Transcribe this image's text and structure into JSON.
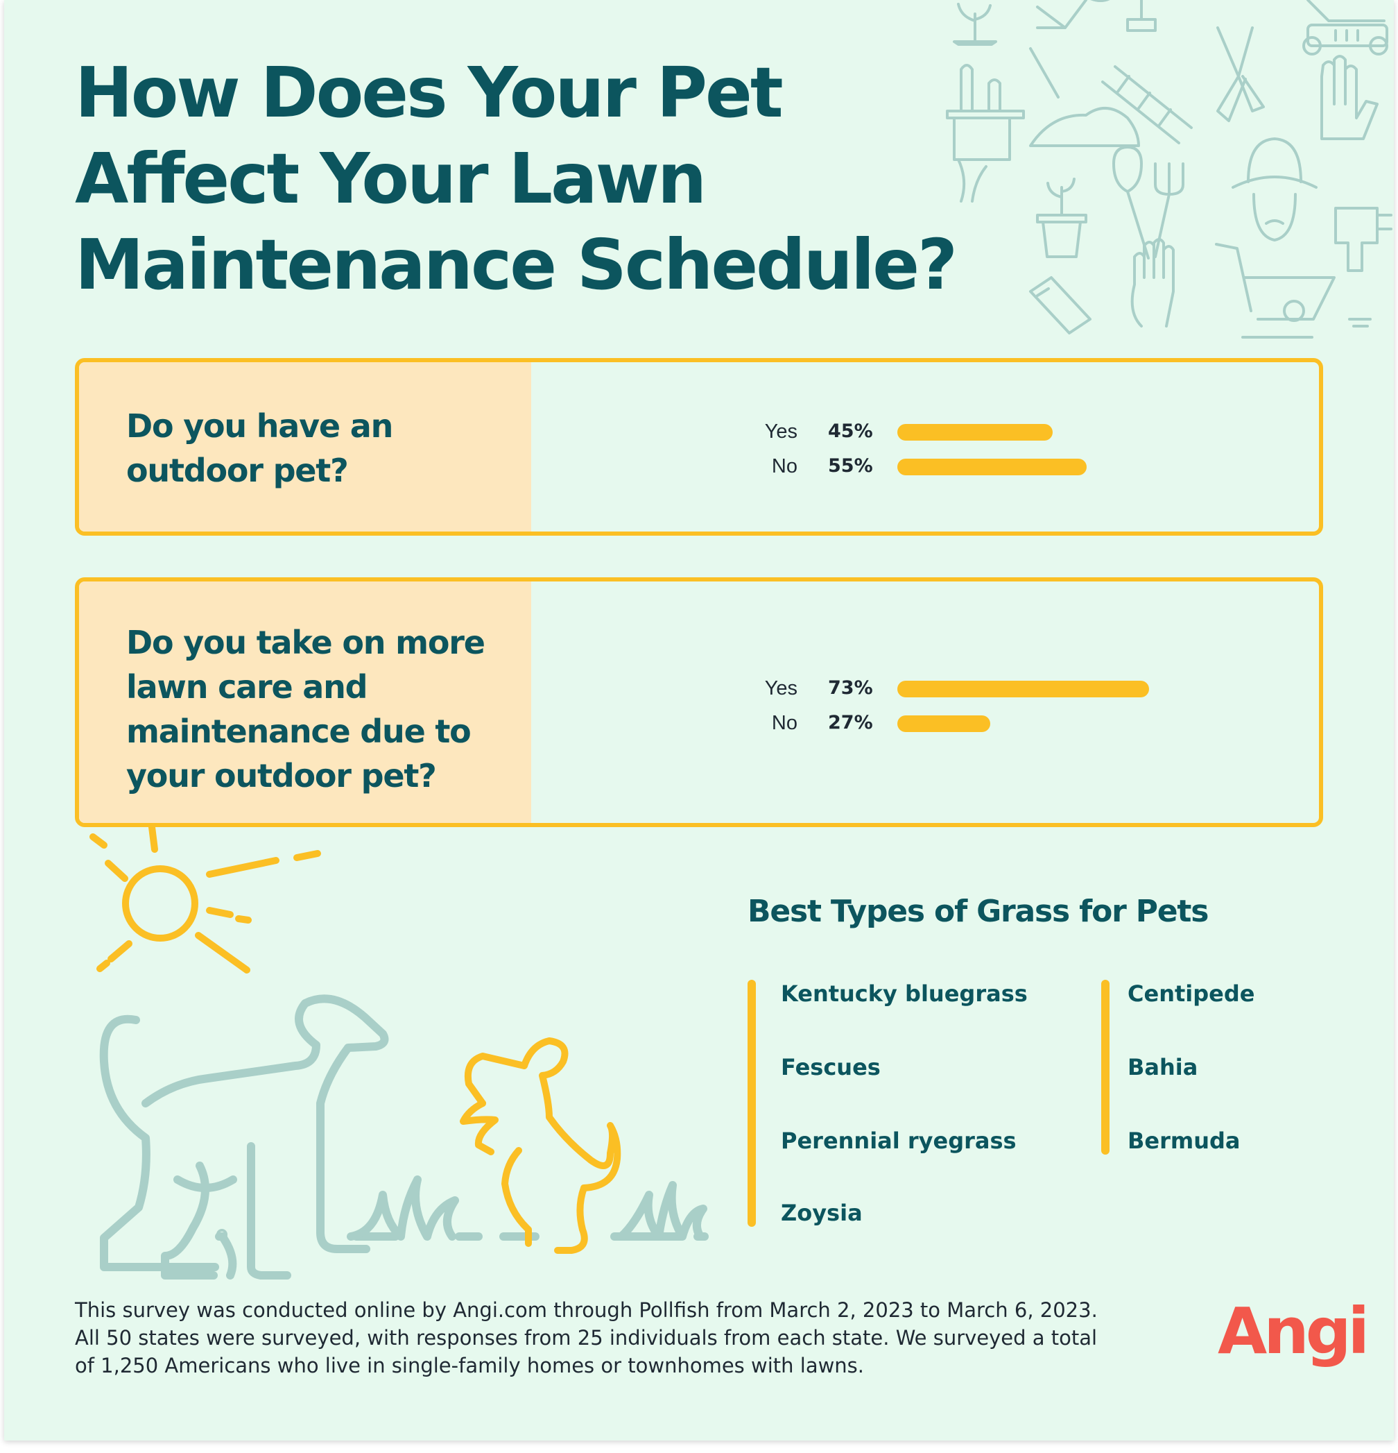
{
  "colors": {
    "background": "#e6f9ee",
    "title_teal": "#0c555e",
    "accent_yellow": "#fbbf24",
    "label_panel": "#fde7be",
    "illustration_teal": "#a9cfc8",
    "brand_red": "#f2584b"
  },
  "title": "How Does Your Pet Affect Your Lawn Maintenance Schedule?",
  "chart_data": [
    {
      "type": "bar",
      "orientation": "horizontal",
      "title": "Do you have an outdoor pet?",
      "categories": [
        "Yes",
        "No"
      ],
      "values": [
        45,
        55
      ],
      "value_labels": [
        "45%",
        "55%"
      ],
      "unit": "%",
      "xlim": [
        0,
        100
      ]
    },
    {
      "type": "bar",
      "orientation": "horizontal",
      "title": "Do you take on more lawn care and maintenance due to your outdoor pet?",
      "categories": [
        "Yes",
        "No"
      ],
      "values": [
        73,
        27
      ],
      "value_labels": [
        "73%",
        "27%"
      ],
      "unit": "%",
      "xlim": [
        0,
        100
      ]
    }
  ],
  "grass": {
    "title": "Best Types of Grass for Pets",
    "left_column": [
      "Kentucky bluegrass",
      "Fescues",
      "Perennial ryegrass",
      "Zoysia"
    ],
    "right_column": [
      "Centipede",
      "Bahia",
      "Bermuda"
    ]
  },
  "illustration": {
    "icons": [
      "sun-icon",
      "dog-standing-icon",
      "dog-jumping-icon",
      "grass-tuft-icon",
      "garden-tools-pattern-icon"
    ]
  },
  "footer": {
    "lines": [
      "This survey was conducted online by Angi.com through Pollfish from March 2, 2023 to March 6, 2023.",
      "All 50 states were surveyed, with responses from 25 individuals from each state. We surveyed a total",
      "of 1,250 Americans who live in single-family homes or townhomes with lawns."
    ]
  },
  "brand": {
    "logo_text": "Angi"
  }
}
